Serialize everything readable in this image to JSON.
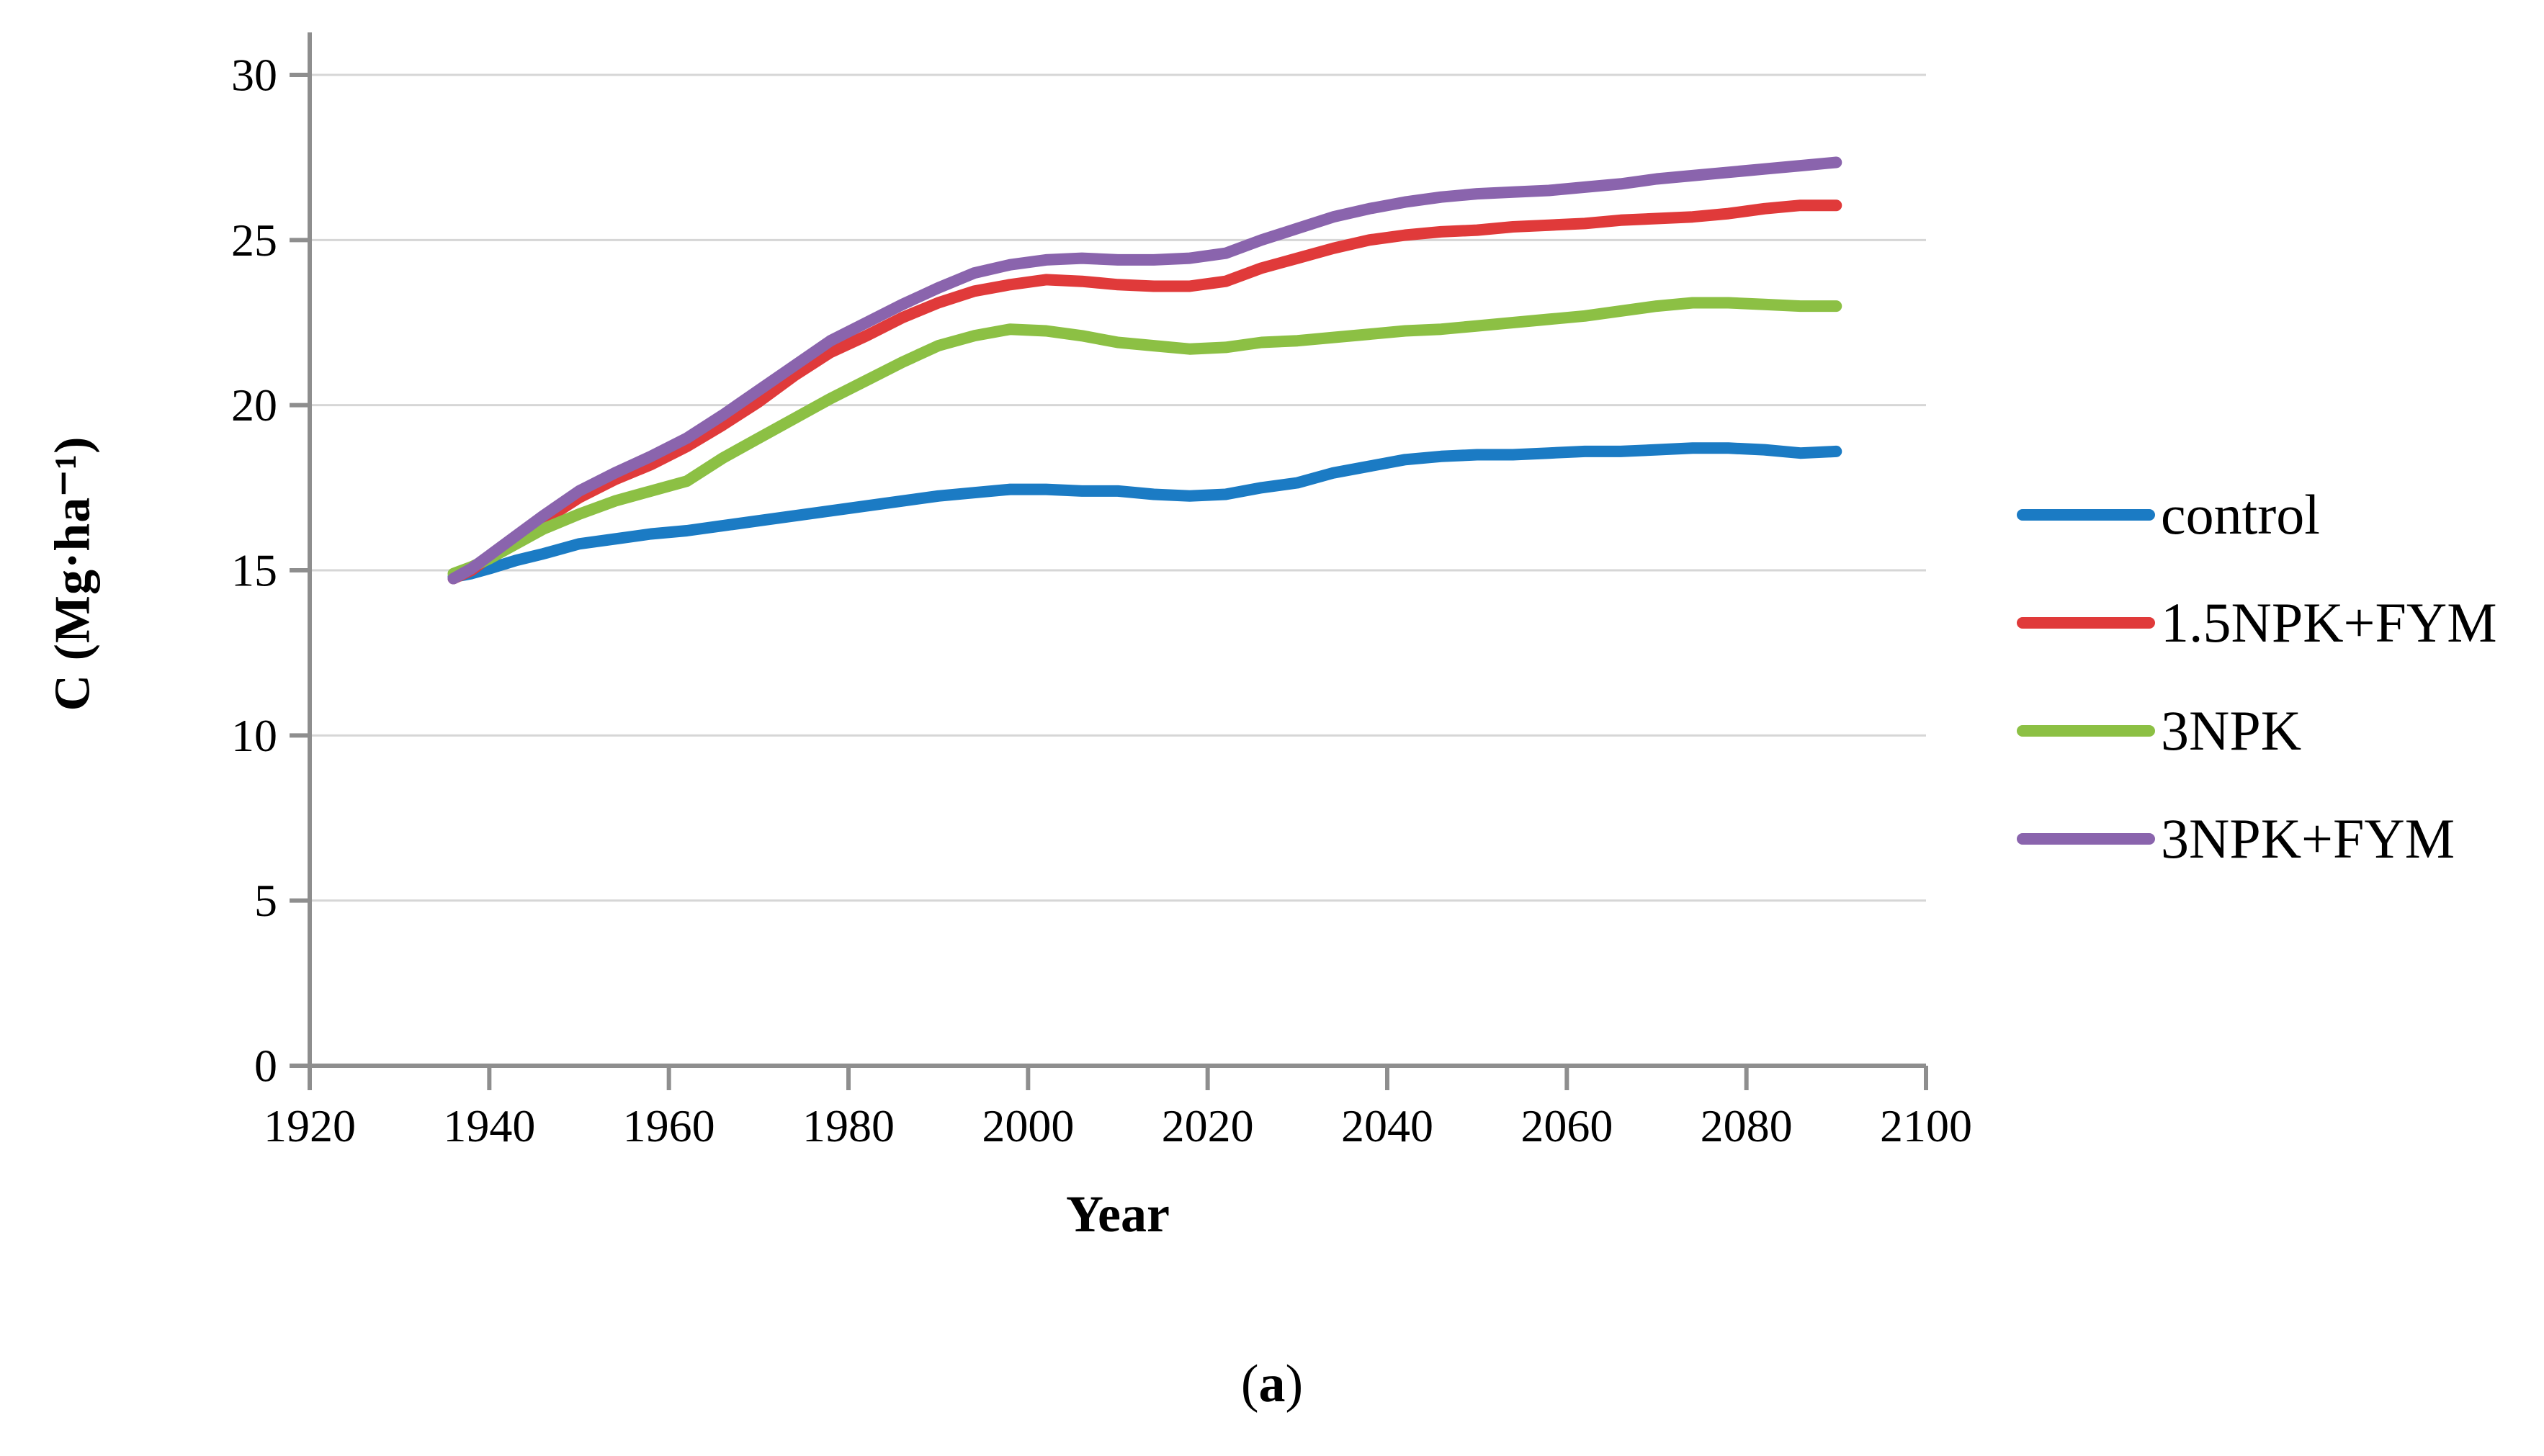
{
  "caption": {
    "open": "(",
    "letter": "a",
    "close": ")"
  },
  "chart_data": {
    "type": "line",
    "title": "",
    "xlabel": "Year",
    "ylabel": "C (Mg·ha⁻¹)",
    "x_range": [
      1920,
      2100
    ],
    "x_ticks": [
      1920,
      1940,
      1960,
      1980,
      2000,
      2020,
      2040,
      2060,
      2080,
      2100
    ],
    "y_range": [
      0,
      30
    ],
    "y_ticks": [
      0,
      5,
      10,
      15,
      20,
      25,
      30
    ],
    "grid": "horizontal gridlines only",
    "legend_position": "right",
    "axis_color": "#8e8e8e",
    "grid_color": "#d6d6d6",
    "text_color": "#000000",
    "series": [
      {
        "name": "control",
        "color": "#1b7bc4",
        "points": [
          [
            1936,
            14.8
          ],
          [
            1938,
            14.9
          ],
          [
            1940,
            15.05
          ],
          [
            1943,
            15.3
          ],
          [
            1946,
            15.5
          ],
          [
            1950,
            15.8
          ],
          [
            1954,
            15.95
          ],
          [
            1958,
            16.1
          ],
          [
            1962,
            16.2
          ],
          [
            1966,
            16.35
          ],
          [
            1970,
            16.5
          ],
          [
            1974,
            16.65
          ],
          [
            1978,
            16.8
          ],
          [
            1982,
            16.95
          ],
          [
            1986,
            17.1
          ],
          [
            1990,
            17.25
          ],
          [
            1994,
            17.35
          ],
          [
            1998,
            17.45
          ],
          [
            2002,
            17.45
          ],
          [
            2006,
            17.4
          ],
          [
            2010,
            17.4
          ],
          [
            2014,
            17.3
          ],
          [
            2018,
            17.25
          ],
          [
            2022,
            17.3
          ],
          [
            2026,
            17.5
          ],
          [
            2030,
            17.65
          ],
          [
            2034,
            17.95
          ],
          [
            2038,
            18.15
          ],
          [
            2042,
            18.35
          ],
          [
            2046,
            18.45
          ],
          [
            2050,
            18.5
          ],
          [
            2054,
            18.5
          ],
          [
            2058,
            18.55
          ],
          [
            2062,
            18.6
          ],
          [
            2066,
            18.6
          ],
          [
            2070,
            18.65
          ],
          [
            2074,
            18.7
          ],
          [
            2078,
            18.7
          ],
          [
            2082,
            18.65
          ],
          [
            2086,
            18.55
          ],
          [
            2090,
            18.6
          ]
        ]
      },
      {
        "name": "1.5NPK+FYM",
        "color": "#e03a3a",
        "points": [
          [
            1936,
            14.75
          ],
          [
            1938,
            15.0
          ],
          [
            1940,
            15.4
          ],
          [
            1943,
            15.95
          ],
          [
            1946,
            16.5
          ],
          [
            1950,
            17.2
          ],
          [
            1954,
            17.75
          ],
          [
            1958,
            18.2
          ],
          [
            1962,
            18.75
          ],
          [
            1966,
            19.4
          ],
          [
            1970,
            20.1
          ],
          [
            1974,
            20.9
          ],
          [
            1978,
            21.6
          ],
          [
            1982,
            22.1
          ],
          [
            1986,
            22.65
          ],
          [
            1990,
            23.1
          ],
          [
            1994,
            23.45
          ],
          [
            1998,
            23.65
          ],
          [
            2002,
            23.8
          ],
          [
            2006,
            23.75
          ],
          [
            2010,
            23.65
          ],
          [
            2014,
            23.6
          ],
          [
            2018,
            23.6
          ],
          [
            2022,
            23.75
          ],
          [
            2026,
            24.15
          ],
          [
            2030,
            24.45
          ],
          [
            2034,
            24.75
          ],
          [
            2038,
            25.0
          ],
          [
            2042,
            25.15
          ],
          [
            2046,
            25.25
          ],
          [
            2050,
            25.3
          ],
          [
            2054,
            25.4
          ],
          [
            2058,
            25.45
          ],
          [
            2062,
            25.5
          ],
          [
            2066,
            25.6
          ],
          [
            2070,
            25.65
          ],
          [
            2074,
            25.7
          ],
          [
            2078,
            25.8
          ],
          [
            2082,
            25.95
          ],
          [
            2086,
            26.05
          ],
          [
            2090,
            26.05
          ]
        ]
      },
      {
        "name": "3NPK",
        "color": "#8cc044",
        "points": [
          [
            1936,
            14.9
          ],
          [
            1938,
            15.1
          ],
          [
            1940,
            15.35
          ],
          [
            1943,
            15.8
          ],
          [
            1946,
            16.25
          ],
          [
            1950,
            16.7
          ],
          [
            1954,
            17.1
          ],
          [
            1958,
            17.4
          ],
          [
            1962,
            17.7
          ],
          [
            1966,
            18.4
          ],
          [
            1970,
            19.0
          ],
          [
            1974,
            19.6
          ],
          [
            1978,
            20.2
          ],
          [
            1982,
            20.75
          ],
          [
            1986,
            21.3
          ],
          [
            1990,
            21.8
          ],
          [
            1994,
            22.1
          ],
          [
            1998,
            22.3
          ],
          [
            2002,
            22.25
          ],
          [
            2006,
            22.1
          ],
          [
            2010,
            21.9
          ],
          [
            2014,
            21.8
          ],
          [
            2018,
            21.7
          ],
          [
            2022,
            21.75
          ],
          [
            2026,
            21.9
          ],
          [
            2030,
            21.95
          ],
          [
            2034,
            22.05
          ],
          [
            2038,
            22.15
          ],
          [
            2042,
            22.25
          ],
          [
            2046,
            22.3
          ],
          [
            2050,
            22.4
          ],
          [
            2054,
            22.5
          ],
          [
            2058,
            22.6
          ],
          [
            2062,
            22.7
          ],
          [
            2066,
            22.85
          ],
          [
            2070,
            23.0
          ],
          [
            2074,
            23.1
          ],
          [
            2078,
            23.1
          ],
          [
            2082,
            23.05
          ],
          [
            2086,
            23.0
          ],
          [
            2090,
            23.0
          ]
        ]
      },
      {
        "name": "3NPK+FYM",
        "color": "#8a64ad",
        "points": [
          [
            1936,
            14.75
          ],
          [
            1938,
            15.05
          ],
          [
            1940,
            15.45
          ],
          [
            1943,
            16.05
          ],
          [
            1946,
            16.65
          ],
          [
            1950,
            17.4
          ],
          [
            1954,
            17.95
          ],
          [
            1958,
            18.45
          ],
          [
            1962,
            19.0
          ],
          [
            1966,
            19.7
          ],
          [
            1970,
            20.45
          ],
          [
            1974,
            21.2
          ],
          [
            1978,
            21.95
          ],
          [
            1982,
            22.5
          ],
          [
            1986,
            23.05
          ],
          [
            1990,
            23.55
          ],
          [
            1994,
            24.0
          ],
          [
            1998,
            24.25
          ],
          [
            2002,
            24.4
          ],
          [
            2006,
            24.45
          ],
          [
            2010,
            24.4
          ],
          [
            2014,
            24.4
          ],
          [
            2018,
            24.45
          ],
          [
            2022,
            24.6
          ],
          [
            2026,
            25.0
          ],
          [
            2030,
            25.35
          ],
          [
            2034,
            25.7
          ],
          [
            2038,
            25.95
          ],
          [
            2042,
            26.15
          ],
          [
            2046,
            26.3
          ],
          [
            2050,
            26.4
          ],
          [
            2054,
            26.45
          ],
          [
            2058,
            26.5
          ],
          [
            2062,
            26.6
          ],
          [
            2066,
            26.7
          ],
          [
            2070,
            26.85
          ],
          [
            2074,
            26.95
          ],
          [
            2078,
            27.05
          ],
          [
            2082,
            27.15
          ],
          [
            2086,
            27.25
          ],
          [
            2090,
            27.35
          ]
        ]
      }
    ]
  }
}
